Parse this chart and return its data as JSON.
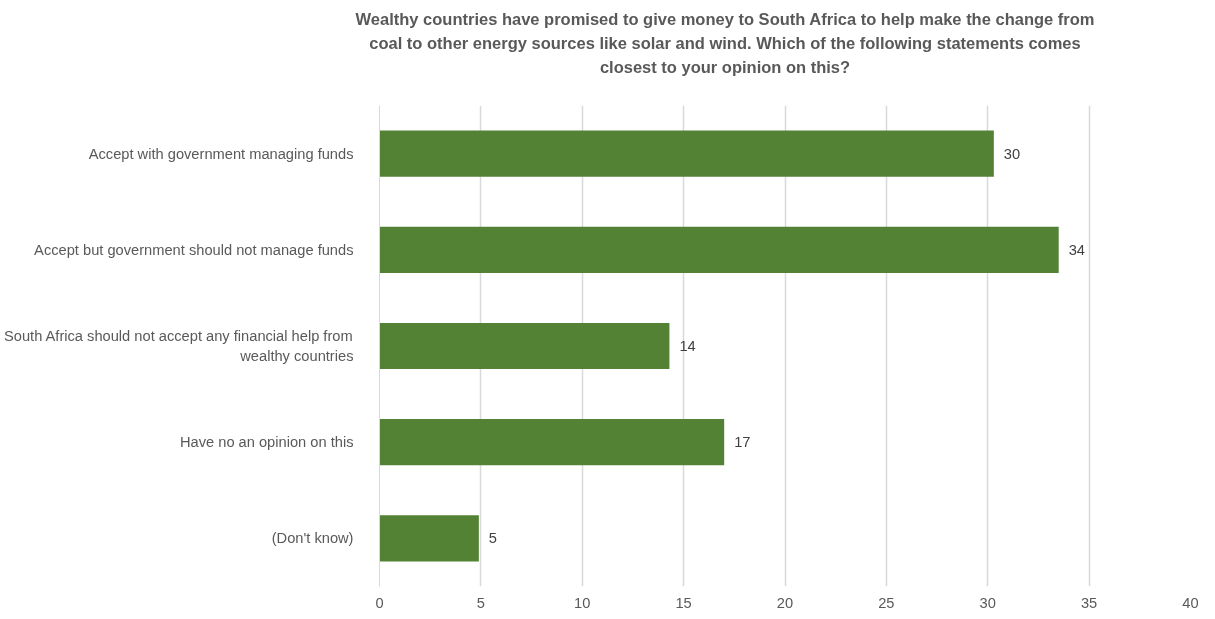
{
  "chart_data": {
    "type": "bar",
    "orientation": "horizontal",
    "title": "Wealthy countries have promised to give money to South Africa to help make the change from coal to other energy sources like solar and wind. Which of the following statements comes closest to your opinion on this?",
    "categories": [
      "Accept with government managing funds",
      "Accept but government should not manage funds",
      "South Africa should not accept any financial help from wealthy countries",
      "Have no an opinion on this",
      "(Don't know)"
    ],
    "values": [
      30.3,
      33.5,
      14.3,
      17.0,
      4.9
    ],
    "value_labels": [
      "30",
      "34",
      "14",
      "17",
      "5"
    ],
    "color": "#548235",
    "xlim": [
      0,
      40
    ],
    "xticks": [
      0,
      5,
      10,
      15,
      20,
      25,
      30,
      35,
      40
    ],
    "grid": "x"
  }
}
